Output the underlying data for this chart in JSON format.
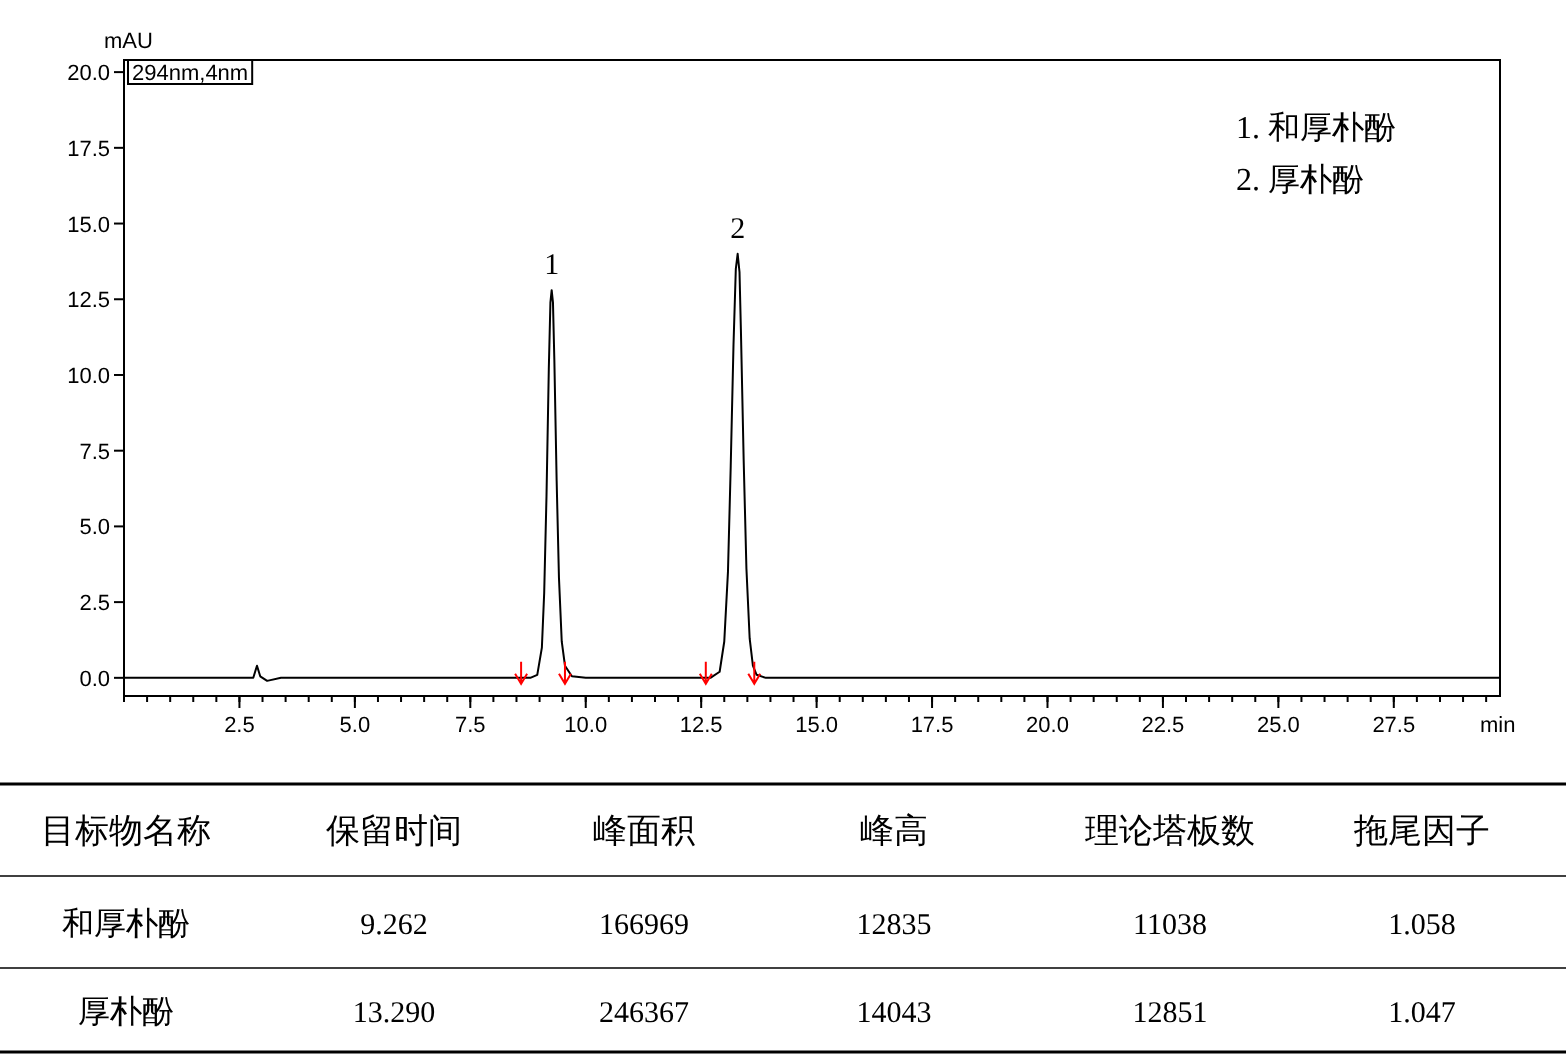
{
  "chart_data": [
    {
      "type": "line",
      "xlabel": "min",
      "ylabel": "mAU",
      "xlim": [
        0,
        29.8
      ],
      "ylim": [
        -0.6,
        20.4
      ],
      "xticks": [
        {
          "value": 2.5,
          "label": "2.5"
        },
        {
          "value": 5,
          "label": "5.0"
        },
        {
          "value": 7.5,
          "label": "7.5"
        },
        {
          "value": 10,
          "label": "10.0"
        },
        {
          "value": 12.5,
          "label": "12.5"
        },
        {
          "value": 15,
          "label": "15.0"
        },
        {
          "value": 17.5,
          "label": "17.5"
        },
        {
          "value": 20,
          "label": "20.0"
        },
        {
          "value": 22.5,
          "label": "22.5"
        },
        {
          "value": 25,
          "label": "25.0"
        },
        {
          "value": 27.5,
          "label": "27.5"
        }
      ],
      "yticks": [
        {
          "value": 0,
          "label": "0.0"
        },
        {
          "value": 2.5,
          "label": "2.5"
        },
        {
          "value": 5,
          "label": "5.0"
        },
        {
          "value": 7.5,
          "label": "7.5"
        },
        {
          "value": 10,
          "label": "10.0"
        },
        {
          "value": 12.5,
          "label": "12.5"
        },
        {
          "value": 15,
          "label": "15.0"
        },
        {
          "value": 17.5,
          "label": "17.5"
        },
        {
          "value": 20,
          "label": "20.0"
        }
      ],
      "series": [
        {
          "type": "line",
          "color": "#000000",
          "x": [
            0,
            2.8,
            2.88,
            2.95,
            3.1,
            3.4,
            8.8,
            8.95,
            9.05,
            9.1,
            9.15,
            9.2,
            9.235,
            9.262,
            9.29,
            9.32,
            9.37,
            9.42,
            9.48,
            9.55,
            9.7,
            10,
            12.7,
            12.9,
            13.0,
            13.08,
            13.14,
            13.2,
            13.25,
            13.29,
            13.33,
            13.36,
            13.42,
            13.48,
            13.55,
            13.62,
            13.7,
            13.9,
            29.8
          ],
          "values": [
            0,
            0,
            0.4,
            0.05,
            -0.1,
            0,
            0,
            0.1,
            1.0,
            2.8,
            6.0,
            10.2,
            12.4,
            12.8,
            12.4,
            10.5,
            6.5,
            3.3,
            1.2,
            0.4,
            0.05,
            0,
            0,
            0.2,
            1.2,
            3.5,
            7.0,
            11.0,
            13.5,
            14.0,
            13.4,
            11.5,
            7.2,
            3.6,
            1.3,
            0.4,
            0.1,
            0,
            0
          ]
        },
        {
          "type": "scatter",
          "color": "#ff0000",
          "marker": "cross",
          "x": [
            8.6,
            9.55,
            12.6,
            13.65
          ],
          "values": [
            0,
            0,
            0,
            0
          ]
        }
      ],
      "annotations": [
        {
          "text": "1",
          "x": 9.262,
          "y": 12.8
        },
        {
          "text": "2",
          "x": 13.29,
          "y": 14.0
        },
        "294nm,4nm",
        "1.  和厚朴酚",
        "2.  厚朴酚"
      ]
    },
    {
      "type": "other",
      "categories": [
        "目标物名称",
        "保留时间",
        "峰面积",
        "峰高",
        "理论塔板数",
        "拖尾因子"
      ],
      "y_categories": [
        "和厚朴酚",
        "厚朴酚"
      ],
      "cell_labels": [
        [
          "9.262",
          "166969",
          "12835",
          "11038",
          "1.058"
        ],
        [
          "13.290",
          "246367",
          "14043",
          "12851",
          "1.047"
        ]
      ]
    }
  ]
}
